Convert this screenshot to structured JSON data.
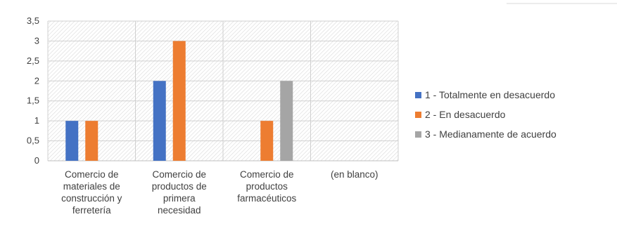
{
  "chart_data": {
    "type": "bar",
    "title": "",
    "xlabel": "",
    "ylabel": "",
    "categories": [
      [
        "Comercio de",
        "materiales de",
        "construcción y",
        "ferretería"
      ],
      [
        "Comercio de",
        "productos de",
        "primera",
        "necesidad"
      ],
      [
        "Comercio de",
        "productos",
        "farmacéuticos"
      ],
      [
        "(en blanco)"
      ]
    ],
    "series": [
      {
        "name": "1 - Totalmente en desacuerdo",
        "color": "#4472c4",
        "values": [
          1,
          2,
          null,
          null
        ]
      },
      {
        "name": "2 - En desacuerdo",
        "color": "#ed7d31",
        "values": [
          1,
          3,
          1,
          null
        ]
      },
      {
        "name": "3 - Medianamente de acuerdo",
        "color": "#a5a5a5",
        "values": [
          null,
          null,
          2,
          null
        ]
      }
    ],
    "yticks": [
      "0",
      "0,5",
      "1",
      "1,5",
      "2",
      "2,5",
      "3",
      "3,5"
    ],
    "ylim": [
      0,
      3.5
    ],
    "grid": true,
    "legend": "right"
  }
}
